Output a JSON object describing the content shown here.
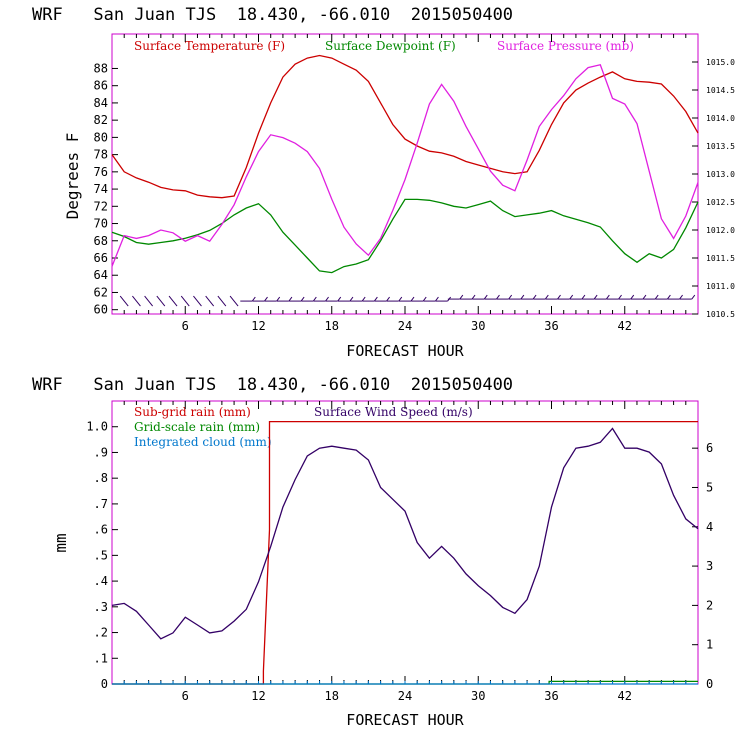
{
  "chart_data": [
    {
      "type": "line",
      "title": "WRF   San Juan TJS  18.430, -66.010  2015050400",
      "xlabel": "FORECAST HOUR",
      "ylabel": "Degrees F",
      "xlim": [
        0,
        48
      ],
      "x_ticks": [
        6,
        12,
        18,
        24,
        30,
        36,
        42
      ],
      "ylim": [
        59.5,
        92
      ],
      "y_ticks": [
        60,
        62,
        64,
        66,
        68,
        70,
        72,
        74,
        76,
        78,
        80,
        82,
        84,
        86,
        88
      ],
      "y2lim": [
        1010.5,
        1015.5
      ],
      "y2_ticks": [
        "1010.5",
        "1011.0",
        "1011.5",
        "1012.0",
        "1012.5",
        "1013.0",
        "1013.5",
        "1014.0",
        "1014.5",
        "1015.0"
      ],
      "legend": "top",
      "series": [
        {
          "name": "Surface Temperature (F)",
          "color": "#cc0000",
          "axis": "left",
          "x": [
            0,
            1,
            2,
            3,
            4,
            5,
            6,
            7,
            8,
            9,
            10,
            11,
            12,
            13,
            14,
            15,
            16,
            17,
            18,
            19,
            20,
            21,
            22,
            23,
            24,
            25,
            26,
            27,
            28,
            29,
            30,
            31,
            32,
            33,
            34,
            35,
            36,
            37,
            38,
            39,
            40,
            41,
            42,
            43,
            44,
            45,
            46,
            47,
            48
          ],
          "values": [
            78,
            76,
            75.3,
            74.8,
            74.2,
            73.9,
            73.8,
            73.3,
            73.1,
            73,
            73.2,
            76.5,
            80.5,
            84,
            87,
            88.5,
            89.2,
            89.5,
            89.2,
            88.5,
            87.8,
            86.5,
            84,
            81.5,
            79.8,
            79,
            78.4,
            78.2,
            77.8,
            77.2,
            76.8,
            76.4,
            76,
            75.8,
            76,
            78.5,
            81.5,
            84,
            85.5,
            86.3,
            87,
            87.6,
            86.8,
            86.5,
            86.4,
            86.2,
            84.8,
            83,
            80.5
          ]
        },
        {
          "name": "Surface Dewpoint (F)",
          "color": "#008800",
          "axis": "left",
          "x": [
            0,
            1,
            2,
            3,
            4,
            5,
            6,
            7,
            8,
            9,
            10,
            11,
            12,
            13,
            14,
            15,
            16,
            17,
            18,
            19,
            20,
            21,
            22,
            23,
            24,
            25,
            26,
            27,
            28,
            29,
            30,
            31,
            32,
            33,
            34,
            35,
            36,
            37,
            38,
            39,
            40,
            41,
            42,
            43,
            44,
            45,
            46,
            47,
            48
          ],
          "values": [
            69,
            68.5,
            67.8,
            67.6,
            67.8,
            68,
            68.3,
            68.7,
            69.2,
            70,
            71,
            71.8,
            72.3,
            71,
            69,
            67.5,
            66,
            64.5,
            64.3,
            65,
            65.3,
            65.8,
            68,
            70.5,
            72.8,
            72.8,
            72.7,
            72.4,
            72,
            71.8,
            72.2,
            72.6,
            71.5,
            70.8,
            71,
            71.2,
            71.5,
            70.9,
            70.5,
            70.1,
            69.6,
            68,
            66.5,
            65.5,
            66.5,
            66,
            67,
            69.5,
            72.5
          ]
        },
        {
          "name": "Surface Pressure (mb)",
          "color": "#e020e0",
          "axis": "right",
          "x": [
            0,
            1,
            2,
            3,
            4,
            5,
            6,
            7,
            8,
            9,
            10,
            11,
            12,
            13,
            14,
            15,
            16,
            17,
            18,
            19,
            20,
            21,
            22,
            23,
            24,
            25,
            26,
            27,
            28,
            29,
            30,
            31,
            32,
            33,
            34,
            35,
            36,
            37,
            38,
            39,
            40,
            41,
            42,
            43,
            44,
            45,
            46,
            47,
            48
          ],
          "values": [
            1011.35,
            1011.9,
            1011.85,
            1011.9,
            1012.0,
            1011.95,
            1011.8,
            1011.9,
            1011.8,
            1012.1,
            1012.45,
            1012.95,
            1013.4,
            1013.7,
            1013.65,
            1013.55,
            1013.4,
            1013.1,
            1012.55,
            1012.05,
            1011.75,
            1011.55,
            1011.85,
            1012.35,
            1012.9,
            1013.55,
            1014.25,
            1014.6,
            1014.3,
            1013.85,
            1013.45,
            1013.05,
            1012.8,
            1012.7,
            1013.25,
            1013.85,
            1014.15,
            1014.4,
            1014.7,
            1014.9,
            1014.95,
            1014.35,
            1014.25,
            1013.9,
            1013.05,
            1012.2,
            1011.85,
            1012.25,
            1012.85
          ]
        }
      ],
      "wind_barbs_row_y": 61,
      "wind_barbs_hours": [
        1,
        2,
        3,
        4,
        5,
        6,
        7,
        8,
        9,
        10,
        11,
        12,
        13,
        14,
        15,
        16,
        17,
        18,
        19,
        20,
        21,
        22,
        23,
        24,
        25,
        26,
        27,
        28,
        29,
        30,
        31,
        32,
        33,
        34,
        35,
        36,
        37,
        38,
        39,
        40,
        41,
        42,
        43,
        44,
        45,
        46,
        47
      ]
    },
    {
      "type": "line",
      "title": "WRF   San Juan TJS  18.430, -66.010  2015050400",
      "xlabel": "FORECAST HOUR",
      "ylabel": "mm",
      "xlim": [
        0,
        48
      ],
      "x_ticks": [
        6,
        12,
        18,
        24,
        30,
        36,
        42
      ],
      "ylim": [
        0,
        1.1
      ],
      "y_ticks": [
        "0",
        ".1",
        ".2",
        ".3",
        ".4",
        ".5",
        ".6",
        ".7",
        ".8",
        ".9",
        "1.0"
      ],
      "y_tick_values": [
        0,
        0.1,
        0.2,
        0.3,
        0.4,
        0.5,
        0.6,
        0.7,
        0.8,
        0.9,
        1.0
      ],
      "y2lim": [
        0,
        7.2
      ],
      "y2_ticks": [
        "0",
        "1",
        "2",
        "3",
        "4",
        "5",
        "6"
      ],
      "legend": "top-left",
      "series": [
        {
          "name": "Sub-grid rain (mm)",
          "color": "#cc0000",
          "axis": "left",
          "x": [
            0,
            12.4,
            12.4,
            12.9,
            12.9,
            48
          ],
          "values": [
            0,
            0,
            0.05,
            0.6,
            1.02,
            1.02
          ]
        },
        {
          "name": "Grid-scale rain (mm)",
          "color": "#008800",
          "axis": "left",
          "x": [
            0,
            35.8,
            35.8,
            48
          ],
          "values": [
            0,
            0,
            0.01,
            0.01
          ]
        },
        {
          "name": "Integrated cloud (mm)",
          "color": "#0077cc",
          "axis": "left",
          "x": [
            0,
            48
          ],
          "values": [
            0,
            0
          ]
        },
        {
          "name": "Surface Wind Speed (m/s)",
          "color": "#330066",
          "axis": "right",
          "x": [
            0,
            1,
            2,
            3,
            4,
            5,
            6,
            7,
            8,
            9,
            10,
            11,
            12,
            13,
            14,
            15,
            16,
            17,
            18,
            19,
            20,
            21,
            22,
            23,
            24,
            25,
            26,
            27,
            28,
            29,
            30,
            31,
            32,
            33,
            34,
            35,
            36,
            37,
            38,
            39,
            40,
            41,
            42,
            43,
            44,
            45,
            46,
            47,
            48
          ],
          "values": [
            2.0,
            2.05,
            1.85,
            1.5,
            1.15,
            1.3,
            1.7,
            1.5,
            1.3,
            1.35,
            1.6,
            1.9,
            2.6,
            3.5,
            4.5,
            5.2,
            5.8,
            6.0,
            6.05,
            6.0,
            5.95,
            5.7,
            5.0,
            4.7,
            4.4,
            3.6,
            3.2,
            3.5,
            3.2,
            2.8,
            2.5,
            2.25,
            1.95,
            1.8,
            2.15,
            3.0,
            4.5,
            5.5,
            6.0,
            6.05,
            6.15,
            6.5,
            6.0,
            6.0,
            5.9,
            5.6,
            4.8,
            4.2,
            3.95
          ]
        }
      ]
    }
  ]
}
